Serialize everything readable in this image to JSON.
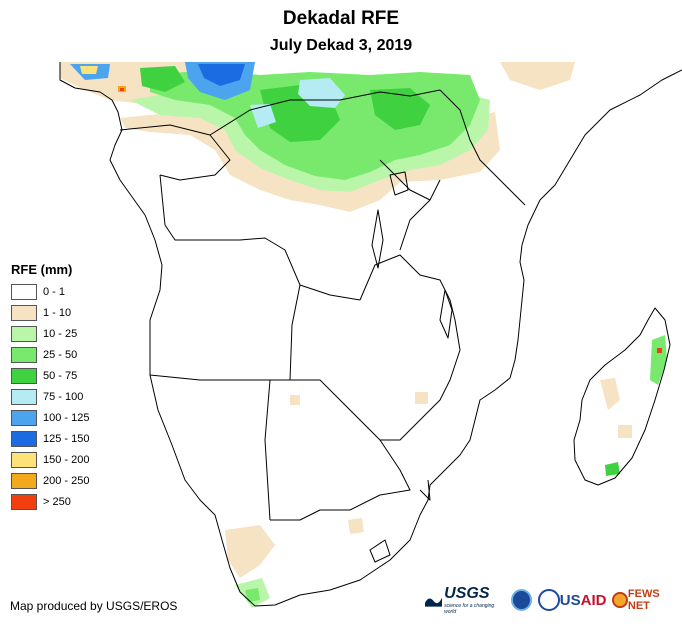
{
  "title": "Dekadal RFE",
  "subtitle": "July Dekad 3, 2019",
  "legend": {
    "title": "RFE (mm)",
    "items": [
      {
        "label": "0 - 1",
        "color": "#ffffff"
      },
      {
        "label": "1 - 10",
        "color": "#f5e3c3"
      },
      {
        "label": "10 - 25",
        "color": "#b9f6a9"
      },
      {
        "label": "25 - 50",
        "color": "#78e96c"
      },
      {
        "label": "50 - 75",
        "color": "#3fd13f"
      },
      {
        "label": "75 - 100",
        "color": "#b5ecf3"
      },
      {
        "label": "100 - 125",
        "color": "#4ca3ee"
      },
      {
        "label": "125 - 150",
        "color": "#1b6be3"
      },
      {
        "label": "150 - 200",
        "color": "#fde27a"
      },
      {
        "label": "200 - 250",
        "color": "#f4a81c"
      },
      {
        "label": "> 250",
        "color": "#f23f0f"
      }
    ]
  },
  "credit": "Map produced by USGS/EROS",
  "logos": {
    "usgs": "USGS",
    "usgs_tagline": "science for a changing world",
    "usaid_us": "US",
    "usaid_aid": "AID",
    "fewsnet": "FEWS NET"
  }
}
